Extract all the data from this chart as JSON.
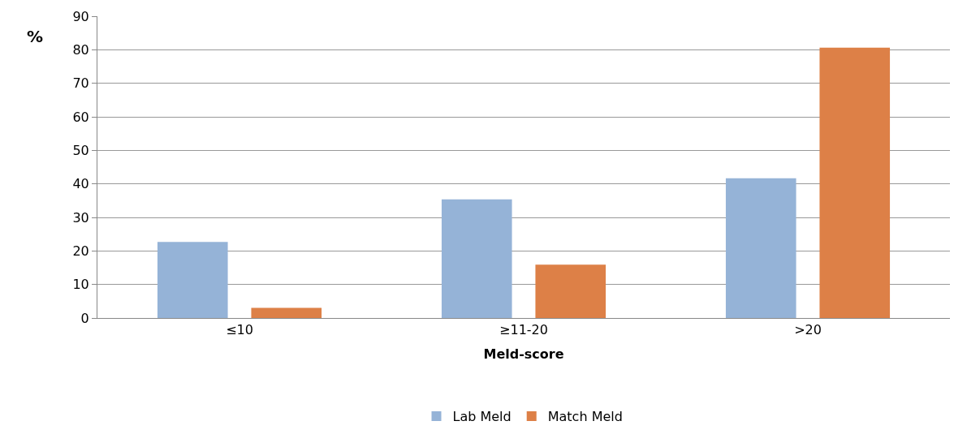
{
  "chart_data": {
    "type": "bar",
    "ylabel": "%",
    "xlabel": "Meld-score",
    "categories": [
      "≤10",
      "≥11-20",
      ">20"
    ],
    "series": [
      {
        "name": "Lab Meld",
        "color": "#95b3d7",
        "values": [
          22.7,
          35.4,
          41.7
        ]
      },
      {
        "name": "Match Meld",
        "color": "#dd8047",
        "values": [
          3.0,
          15.9,
          80.6
        ]
      }
    ],
    "ylim": [
      0,
      90
    ],
    "yticks": [
      0,
      10,
      20,
      30,
      40,
      50,
      60,
      70,
      80,
      90
    ],
    "grid": "y",
    "legend": "bottom"
  }
}
